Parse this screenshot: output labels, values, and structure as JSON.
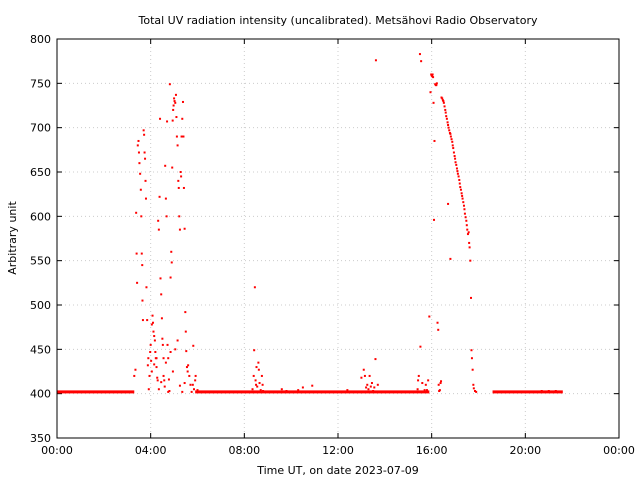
{
  "chart_data": {
    "type": "scatter",
    "title": "Total UV radiation intensity (uncalibrated). Metsähovi Radio Observatory",
    "xlabel": "Time UT, on date 2023-07-09",
    "ylabel": "Arbitrary unit",
    "xlim": [
      0,
      24
    ],
    "ylim": [
      350,
      800
    ],
    "x_ticks": [
      0,
      4,
      8,
      12,
      16,
      20,
      24
    ],
    "x_tick_labels": [
      "00:00",
      "04:00",
      "08:00",
      "12:00",
      "16:00",
      "20:00",
      "00:00"
    ],
    "y_ticks": [
      350,
      400,
      450,
      500,
      550,
      600,
      650,
      700,
      750,
      800
    ],
    "y_tick_labels": [
      "350",
      "400",
      "450",
      "500",
      "550",
      "600",
      "650",
      "700",
      "750",
      "800"
    ],
    "grid": true,
    "point_color": "#ff0000",
    "baseline": {
      "value": 402,
      "ranges": [
        [
          0.0,
          3.3
        ],
        [
          5.9,
          15.9
        ],
        [
          18.6,
          21.6
        ]
      ]
    },
    "series": [
      {
        "points": [
          [
            3.3,
            420
          ],
          [
            3.35,
            427
          ],
          [
            3.38,
            604
          ],
          [
            3.4,
            558
          ],
          [
            3.42,
            525
          ],
          [
            3.45,
            680
          ],
          [
            3.48,
            685
          ],
          [
            3.5,
            672
          ],
          [
            3.52,
            660
          ],
          [
            3.55,
            648
          ],
          [
            3.58,
            630
          ],
          [
            3.6,
            600
          ],
          [
            3.62,
            558
          ],
          [
            3.64,
            545
          ],
          [
            3.65,
            505
          ],
          [
            3.67,
            483
          ],
          [
            3.7,
            697
          ],
          [
            3.72,
            692
          ],
          [
            3.74,
            672
          ],
          [
            3.76,
            665
          ],
          [
            3.78,
            640
          ],
          [
            3.8,
            620
          ],
          [
            3.82,
            520
          ],
          [
            3.85,
            483
          ],
          [
            3.88,
            432
          ],
          [
            3.9,
            440
          ],
          [
            3.92,
            405
          ],
          [
            3.95,
            420
          ],
          [
            3.98,
            447
          ],
          [
            4.0,
            455
          ],
          [
            4.02,
            437
          ],
          [
            4.05,
            425
          ],
          [
            4.08,
            488
          ],
          [
            4.1,
            480
          ],
          [
            4.12,
            470
          ],
          [
            4.15,
            465
          ],
          [
            4.18,
            460
          ],
          [
            4.2,
            447
          ],
          [
            4.22,
            440
          ],
          [
            4.25,
            430
          ],
          [
            4.28,
            418
          ],
          [
            4.3,
            415
          ],
          [
            4.32,
            595
          ],
          [
            4.35,
            585
          ],
          [
            4.38,
            622
          ],
          [
            4.4,
            710
          ],
          [
            4.42,
            530
          ],
          [
            4.45,
            512
          ],
          [
            4.48,
            485
          ],
          [
            4.5,
            462
          ],
          [
            4.52,
            455
          ],
          [
            4.55,
            440
          ],
          [
            4.58,
            415
          ],
          [
            4.6,
            408
          ],
          [
            4.62,
            657
          ],
          [
            4.65,
            620
          ],
          [
            4.68,
            600
          ],
          [
            4.7,
            707
          ],
          [
            4.72,
            455
          ],
          [
            4.75,
            440
          ],
          [
            4.78,
            416
          ],
          [
            4.8,
            403
          ],
          [
            4.82,
            749
          ],
          [
            4.85,
            531
          ],
          [
            4.88,
            560
          ],
          [
            4.9,
            548
          ],
          [
            4.92,
            655
          ],
          [
            4.94,
            708
          ],
          [
            4.96,
            720
          ],
          [
            4.98,
            725
          ],
          [
            5.0,
            733
          ],
          [
            5.02,
            730
          ],
          [
            5.05,
            728
          ],
          [
            5.08,
            737
          ],
          [
            5.1,
            712
          ],
          [
            5.12,
            690
          ],
          [
            5.15,
            680
          ],
          [
            5.18,
            640
          ],
          [
            5.2,
            632
          ],
          [
            5.22,
            600
          ],
          [
            5.25,
            585
          ],
          [
            5.28,
            650
          ],
          [
            5.3,
            645
          ],
          [
            5.32,
            690
          ],
          [
            5.35,
            710
          ],
          [
            5.38,
            729
          ],
          [
            5.4,
            690
          ],
          [
            5.42,
            632
          ],
          [
            5.45,
            586
          ],
          [
            5.48,
            492
          ],
          [
            5.5,
            470
          ],
          [
            5.52,
            448
          ],
          [
            5.55,
            430
          ],
          [
            5.58,
            425
          ],
          [
            5.6,
            432
          ],
          [
            5.65,
            420
          ],
          [
            5.7,
            410
          ],
          [
            5.75,
            402
          ],
          [
            5.8,
            410
          ],
          [
            5.82,
            454
          ],
          [
            5.85,
            405
          ],
          [
            5.9,
            415
          ],
          [
            5.92,
            420
          ],
          [
            6.0,
            404
          ],
          [
            4.05,
            478
          ],
          [
            4.15,
            433
          ],
          [
            4.25,
            440
          ],
          [
            4.35,
            405
          ],
          [
            4.45,
            413
          ],
          [
            4.55,
            420
          ],
          [
            4.65,
            435
          ],
          [
            4.75,
            402
          ],
          [
            4.85,
            447
          ],
          [
            4.95,
            425
          ],
          [
            5.05,
            450
          ],
          [
            5.15,
            460
          ],
          [
            5.25,
            409
          ],
          [
            5.35,
            402
          ],
          [
            5.45,
            412
          ],
          [
            8.35,
            405
          ],
          [
            8.4,
            420
          ],
          [
            8.42,
            449
          ],
          [
            8.45,
            520
          ],
          [
            8.48,
            415
          ],
          [
            8.5,
            410
          ],
          [
            8.52,
            430
          ],
          [
            8.55,
            408
          ],
          [
            8.6,
            435
          ],
          [
            8.62,
            427
          ],
          [
            8.65,
            412
          ],
          [
            8.7,
            404
          ],
          [
            8.75,
            420
          ],
          [
            8.78,
            410
          ],
          [
            8.8,
            403
          ],
          [
            9.6,
            405
          ],
          [
            9.8,
            403
          ],
          [
            10.3,
            404
          ],
          [
            10.5,
            407
          ],
          [
            10.9,
            409
          ],
          [
            12.4,
            404
          ],
          [
            13.0,
            418
          ],
          [
            13.1,
            427
          ],
          [
            13.15,
            420
          ],
          [
            13.2,
            407
          ],
          [
            13.25,
            410
          ],
          [
            13.3,
            405
          ],
          [
            13.35,
            420
          ],
          [
            13.4,
            408
          ],
          [
            13.45,
            412
          ],
          [
            13.5,
            403
          ],
          [
            13.55,
            407
          ],
          [
            13.6,
            439
          ],
          [
            13.62,
            776
          ],
          [
            13.7,
            410
          ],
          [
            15.4,
            405
          ],
          [
            15.42,
            415
          ],
          [
            15.45,
            420
          ],
          [
            15.5,
            783
          ],
          [
            15.52,
            453
          ],
          [
            15.55,
            775
          ],
          [
            15.6,
            412
          ],
          [
            15.8,
            404
          ],
          [
            15.85,
            415
          ],
          [
            15.9,
            487
          ],
          [
            15.95,
            740
          ],
          [
            15.98,
            760
          ],
          [
            16.0,
            759
          ],
          [
            16.02,
            758
          ],
          [
            16.04,
            760
          ],
          [
            16.06,
            757
          ],
          [
            16.08,
            728
          ],
          [
            16.1,
            596
          ],
          [
            16.12,
            685
          ],
          [
            16.15,
            749
          ],
          [
            16.18,
            748
          ],
          [
            16.2,
            748
          ],
          [
            16.22,
            750
          ],
          [
            16.25,
            480
          ],
          [
            16.28,
            472
          ],
          [
            16.3,
            410
          ],
          [
            16.32,
            403
          ],
          [
            16.35,
            404
          ],
          [
            16.38,
            412
          ],
          [
            16.4,
            414
          ],
          [
            16.42,
            734
          ],
          [
            16.45,
            733
          ],
          [
            16.48,
            731
          ],
          [
            16.5,
            730
          ],
          [
            16.52,
            728
          ],
          [
            16.55,
            724
          ],
          [
            16.58,
            720
          ],
          [
            16.6,
            717
          ],
          [
            16.62,
            713
          ],
          [
            16.65,
            710
          ],
          [
            16.68,
            706
          ],
          [
            16.7,
            703
          ],
          [
            16.72,
            700
          ],
          [
            16.75,
            697
          ],
          [
            16.78,
            694
          ],
          [
            16.8,
            693
          ],
          [
            16.82,
            690
          ],
          [
            16.85,
            687
          ],
          [
            16.88,
            684
          ],
          [
            16.9,
            680
          ],
          [
            16.92,
            677
          ],
          [
            16.95,
            672
          ],
          [
            16.98,
            668
          ],
          [
            17.0,
            665
          ],
          [
            17.02,
            661
          ],
          [
            17.05,
            658
          ],
          [
            17.08,
            654
          ],
          [
            17.1,
            651
          ],
          [
            17.12,
            648
          ],
          [
            17.15,
            645
          ],
          [
            17.18,
            641
          ],
          [
            17.2,
            637
          ],
          [
            17.22,
            633
          ],
          [
            17.25,
            630
          ],
          [
            17.28,
            626
          ],
          [
            17.3,
            623
          ],
          [
            17.32,
            620
          ],
          [
            17.35,
            616
          ],
          [
            17.38,
            612
          ],
          [
            17.4,
            608
          ],
          [
            17.42,
            603
          ],
          [
            17.45,
            599
          ],
          [
            17.48,
            595
          ],
          [
            17.5,
            590
          ],
          [
            17.52,
            585
          ],
          [
            17.55,
            580
          ],
          [
            17.58,
            582
          ],
          [
            17.6,
            570
          ],
          [
            17.62,
            565
          ],
          [
            17.65,
            550
          ],
          [
            17.68,
            508
          ],
          [
            17.7,
            449
          ],
          [
            17.72,
            440
          ],
          [
            17.75,
            427
          ],
          [
            17.78,
            410
          ],
          [
            17.8,
            406
          ],
          [
            17.85,
            403
          ],
          [
            17.9,
            402
          ],
          [
            16.7,
            614
          ],
          [
            16.8,
            552
          ],
          [
            15.7,
            404
          ],
          [
            15.75,
            410
          ],
          [
            20.7,
            403
          ],
          [
            21.0,
            403
          ],
          [
            21.3,
            403
          ]
        ]
      }
    ]
  }
}
